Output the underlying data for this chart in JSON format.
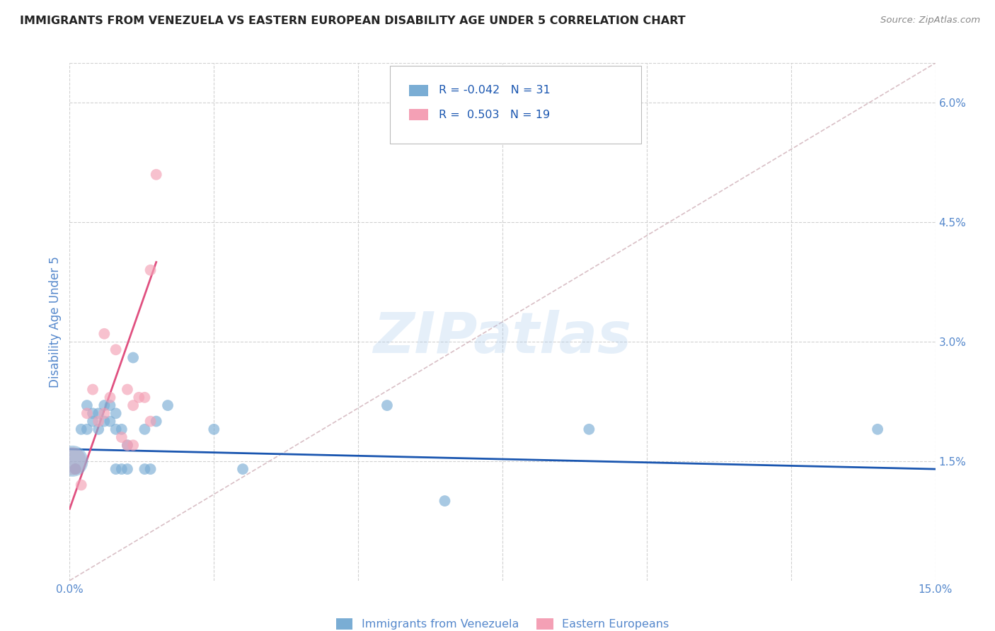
{
  "title": "IMMIGRANTS FROM VENEZUELA VS EASTERN EUROPEAN DISABILITY AGE UNDER 5 CORRELATION CHART",
  "source": "Source: ZipAtlas.com",
  "ylabel": "Disability Age Under 5",
  "xlim": [
    0.0,
    0.15
  ],
  "ylim": [
    0.0,
    0.065
  ],
  "yticks_right": [
    0.015,
    0.03,
    0.045,
    0.06
  ],
  "ytick_labels_right": [
    "1.5%",
    "3.0%",
    "4.5%",
    "6.0%"
  ],
  "xtick_positions": [
    0.0,
    0.025,
    0.05,
    0.075,
    0.1,
    0.125,
    0.15
  ],
  "xtick_labels": [
    "0.0%",
    "",
    "",
    "",
    "",
    "",
    "15.0%"
  ],
  "legend_blue_label": "Immigrants from Venezuela",
  "legend_pink_label": "Eastern Europeans",
  "r_blue": "-0.042",
  "n_blue": "31",
  "r_pink": "0.503",
  "n_pink": "19",
  "blue_scatter_x": [
    0.001,
    0.002,
    0.003,
    0.003,
    0.004,
    0.004,
    0.005,
    0.005,
    0.006,
    0.006,
    0.007,
    0.007,
    0.008,
    0.008,
    0.008,
    0.009,
    0.009,
    0.01,
    0.01,
    0.011,
    0.013,
    0.013,
    0.014,
    0.015,
    0.017,
    0.025,
    0.03,
    0.055,
    0.065,
    0.09,
    0.14
  ],
  "blue_scatter_y": [
    0.014,
    0.019,
    0.019,
    0.022,
    0.02,
    0.021,
    0.019,
    0.021,
    0.02,
    0.022,
    0.02,
    0.022,
    0.019,
    0.021,
    0.014,
    0.019,
    0.014,
    0.017,
    0.014,
    0.028,
    0.019,
    0.014,
    0.014,
    0.02,
    0.022,
    0.019,
    0.014,
    0.022,
    0.01,
    0.019,
    0.019
  ],
  "pink_scatter_x": [
    0.001,
    0.002,
    0.003,
    0.004,
    0.005,
    0.006,
    0.006,
    0.007,
    0.008,
    0.009,
    0.01,
    0.01,
    0.011,
    0.011,
    0.012,
    0.013,
    0.014,
    0.014,
    0.015
  ],
  "pink_scatter_y": [
    0.014,
    0.012,
    0.021,
    0.024,
    0.02,
    0.021,
    0.031,
    0.023,
    0.029,
    0.018,
    0.024,
    0.017,
    0.017,
    0.022,
    0.023,
    0.023,
    0.039,
    0.02,
    0.051
  ],
  "blue_line_x": [
    0.0,
    0.15
  ],
  "blue_line_y": [
    0.0165,
    0.014
  ],
  "pink_line_x": [
    0.0,
    0.015
  ],
  "pink_line_y": [
    0.009,
    0.04
  ],
  "diagonal_line_x": [
    0.0,
    0.15
  ],
  "diagonal_line_y": [
    0.0,
    0.065
  ],
  "watermark": "ZIPatlas",
  "background_color": "#ffffff",
  "blue_color": "#7aadd4",
  "pink_color": "#f4a0b5",
  "blue_line_color": "#1a56b0",
  "pink_line_color": "#e05080",
  "grid_color": "#cccccc",
  "diagonal_color": "#d0b0b8",
  "title_color": "#222222",
  "axis_label_color": "#5588cc",
  "tick_color": "#5588cc"
}
